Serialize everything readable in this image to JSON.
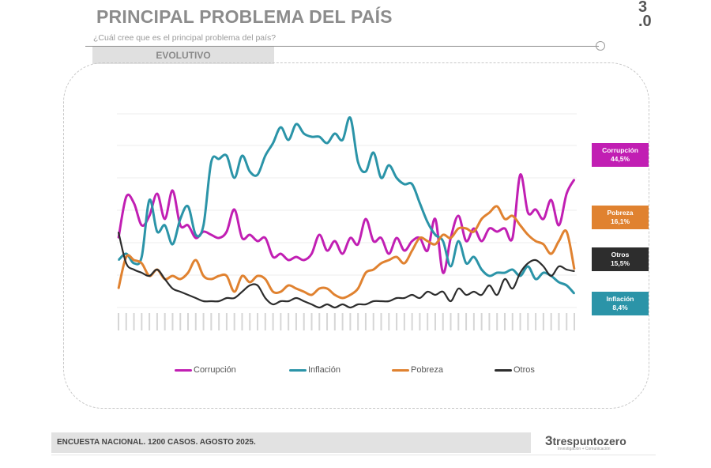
{
  "header": {
    "title": "PRINCIPAL PROBLEMA DEL PAÍS",
    "question": "¿Cuál cree que es el principal problema del país?",
    "section": "EVOLUTIVO",
    "corner_logo": "3.0"
  },
  "footer": {
    "note": "ENCUESTA NACIONAL. 1200 CASOS. AGOSTO 2025.",
    "brand": "trespuntozero",
    "brand_tagline": "Investigación + Comunicación"
  },
  "end_labels": [
    {
      "name": "Corrupción",
      "value": "44,5%",
      "color": "#c11fb3"
    },
    {
      "name": "Pobreza",
      "value": "16,1%",
      "color": "#e08230"
    },
    {
      "name": "Otros",
      "value": "15,5%",
      "color": "#2d2d2d"
    },
    {
      "name": "Inflación",
      "value": "8,4%",
      "color": "#2b94a8"
    }
  ],
  "chart_data": {
    "type": "line",
    "title": "",
    "xlabel": "",
    "ylabel": "",
    "ylim": [
      0,
      70
    ],
    "grid": true,
    "legend": "bottom",
    "series": [
      {
        "name": "Corrupción",
        "color": "#c11fb3",
        "values": [
          26,
          39,
          37,
          30,
          33,
          40,
          32,
          41,
          30,
          30,
          26,
          28,
          27,
          26,
          28,
          35,
          26,
          27,
          25,
          26,
          20,
          21,
          19,
          20,
          19,
          21,
          27,
          22,
          25,
          21,
          26,
          24,
          32,
          25,
          26,
          21,
          26,
          22,
          25,
          26,
          22,
          32,
          15,
          26,
          33,
          25,
          29,
          25,
          29,
          28,
          29,
          26,
          46,
          34,
          35,
          32,
          38,
          30,
          40,
          44.5
        ]
      },
      {
        "name": "Inflación",
        "color": "#2b94a8",
        "values": [
          19,
          21,
          18,
          20,
          38,
          28,
          30,
          24,
          32,
          36,
          27,
          30,
          50,
          51,
          52,
          45,
          52,
          47,
          46,
          52,
          56,
          61,
          57,
          62,
          59,
          58,
          58,
          56,
          59,
          57,
          64,
          50,
          47,
          53,
          45,
          49,
          45,
          43,
          43,
          37,
          31,
          27,
          25,
          17,
          25,
          18,
          20,
          16,
          14,
          15,
          15,
          16,
          14,
          17,
          13,
          15,
          14,
          12,
          11,
          8.4
        ]
      },
      {
        "name": "Pobreza",
        "color": "#e08230",
        "values": [
          10,
          20,
          19,
          18,
          14,
          16,
          13,
          14,
          13,
          15,
          19,
          14,
          13,
          14,
          14,
          9,
          14,
          12,
          14,
          13,
          9,
          9,
          11,
          10,
          9,
          8,
          10,
          10,
          8,
          7,
          8,
          10,
          15,
          16,
          18,
          19,
          20,
          18,
          22,
          26,
          25,
          24,
          27,
          26,
          29,
          29,
          28,
          32,
          34,
          36,
          32,
          33,
          30,
          27,
          25,
          24,
          21,
          25,
          28,
          16.1
        ]
      },
      {
        "name": "Otros",
        "color": "#2d2d2d",
        "values": [
          27.8,
          18,
          16,
          15,
          14,
          16,
          13,
          10,
          9,
          8,
          7,
          6,
          6,
          6,
          7,
          7,
          9,
          11,
          11,
          7,
          5,
          6,
          6,
          7,
          6,
          5,
          4,
          5,
          4,
          5,
          4,
          5,
          5,
          6,
          6,
          6,
          7,
          7,
          8,
          7,
          9,
          8,
          9,
          6,
          10,
          8,
          9,
          8,
          11,
          8,
          13,
          10,
          15,
          18,
          19,
          17,
          14,
          17,
          16,
          15.5
        ]
      }
    ]
  }
}
